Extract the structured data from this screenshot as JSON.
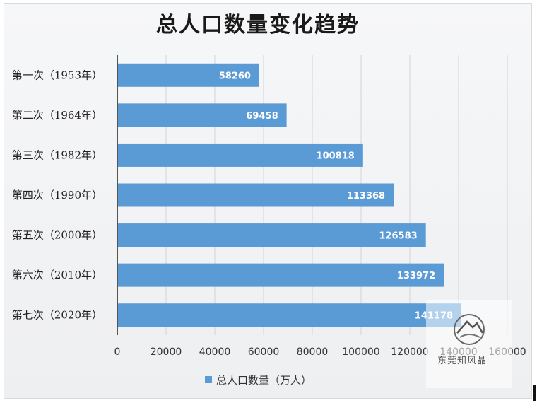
{
  "chart_data": {
    "type": "bar",
    "orientation": "horizontal",
    "title": "总人口数量变化趋势",
    "categories": [
      "第一次（1953年）",
      "第二次（1964年）",
      "第三次（1982年）",
      "第四次（1990年）",
      "第五次（2000年）",
      "第六次（2010年）",
      "第七次（2020年）"
    ],
    "series": [
      {
        "name": "总人口数量（万人）",
        "values": [
          58260,
          69458,
          100818,
          113368,
          126583,
          133972,
          141178
        ]
      }
    ],
    "xlim": [
      0,
      160000
    ],
    "xticks": [
      "0",
      "20000",
      "40000",
      "60000",
      "80000",
      "100000",
      "120000",
      "140000",
      "160000"
    ],
    "grid": true,
    "legend_position": "bottom",
    "colors": {
      "bar": "#5b9bd5",
      "grid": "#d4d4d4",
      "axis": "#555555"
    }
  },
  "watermark": {
    "text": "东莞知风晶"
  }
}
